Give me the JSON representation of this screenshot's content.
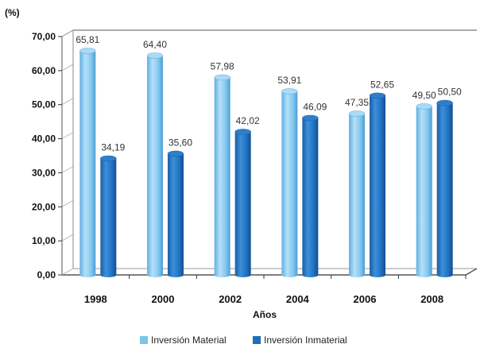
{
  "chart_data": {
    "type": "bar",
    "ylabel": "(%)",
    "xlabel": "Años",
    "categories": [
      "1998",
      "2000",
      "2002",
      "2004",
      "2006",
      "2008"
    ],
    "series": [
      {
        "name": "Inversión Material",
        "color": "#7fc3ea",
        "values": [
          65.81,
          64.4,
          57.98,
          53.91,
          47.35,
          49.5
        ],
        "labels": [
          "65,81",
          "64,40",
          "57,98",
          "53,91",
          "47,35",
          "49,50"
        ]
      },
      {
        "name": "Inversión Inmaterial",
        "color": "#1f6fbd",
        "values": [
          34.19,
          35.6,
          42.02,
          46.09,
          52.65,
          50.5
        ],
        "labels": [
          "34,19",
          "35,60",
          "42,02",
          "46,09",
          "52,65",
          "50,50"
        ]
      }
    ],
    "ylim": [
      0,
      70
    ],
    "yticks": [
      "0,00",
      "10,00",
      "20,00",
      "30,00",
      "40,00",
      "50,00",
      "60,00",
      "70,00"
    ],
    "grid": false,
    "legend_position": "bottom"
  }
}
